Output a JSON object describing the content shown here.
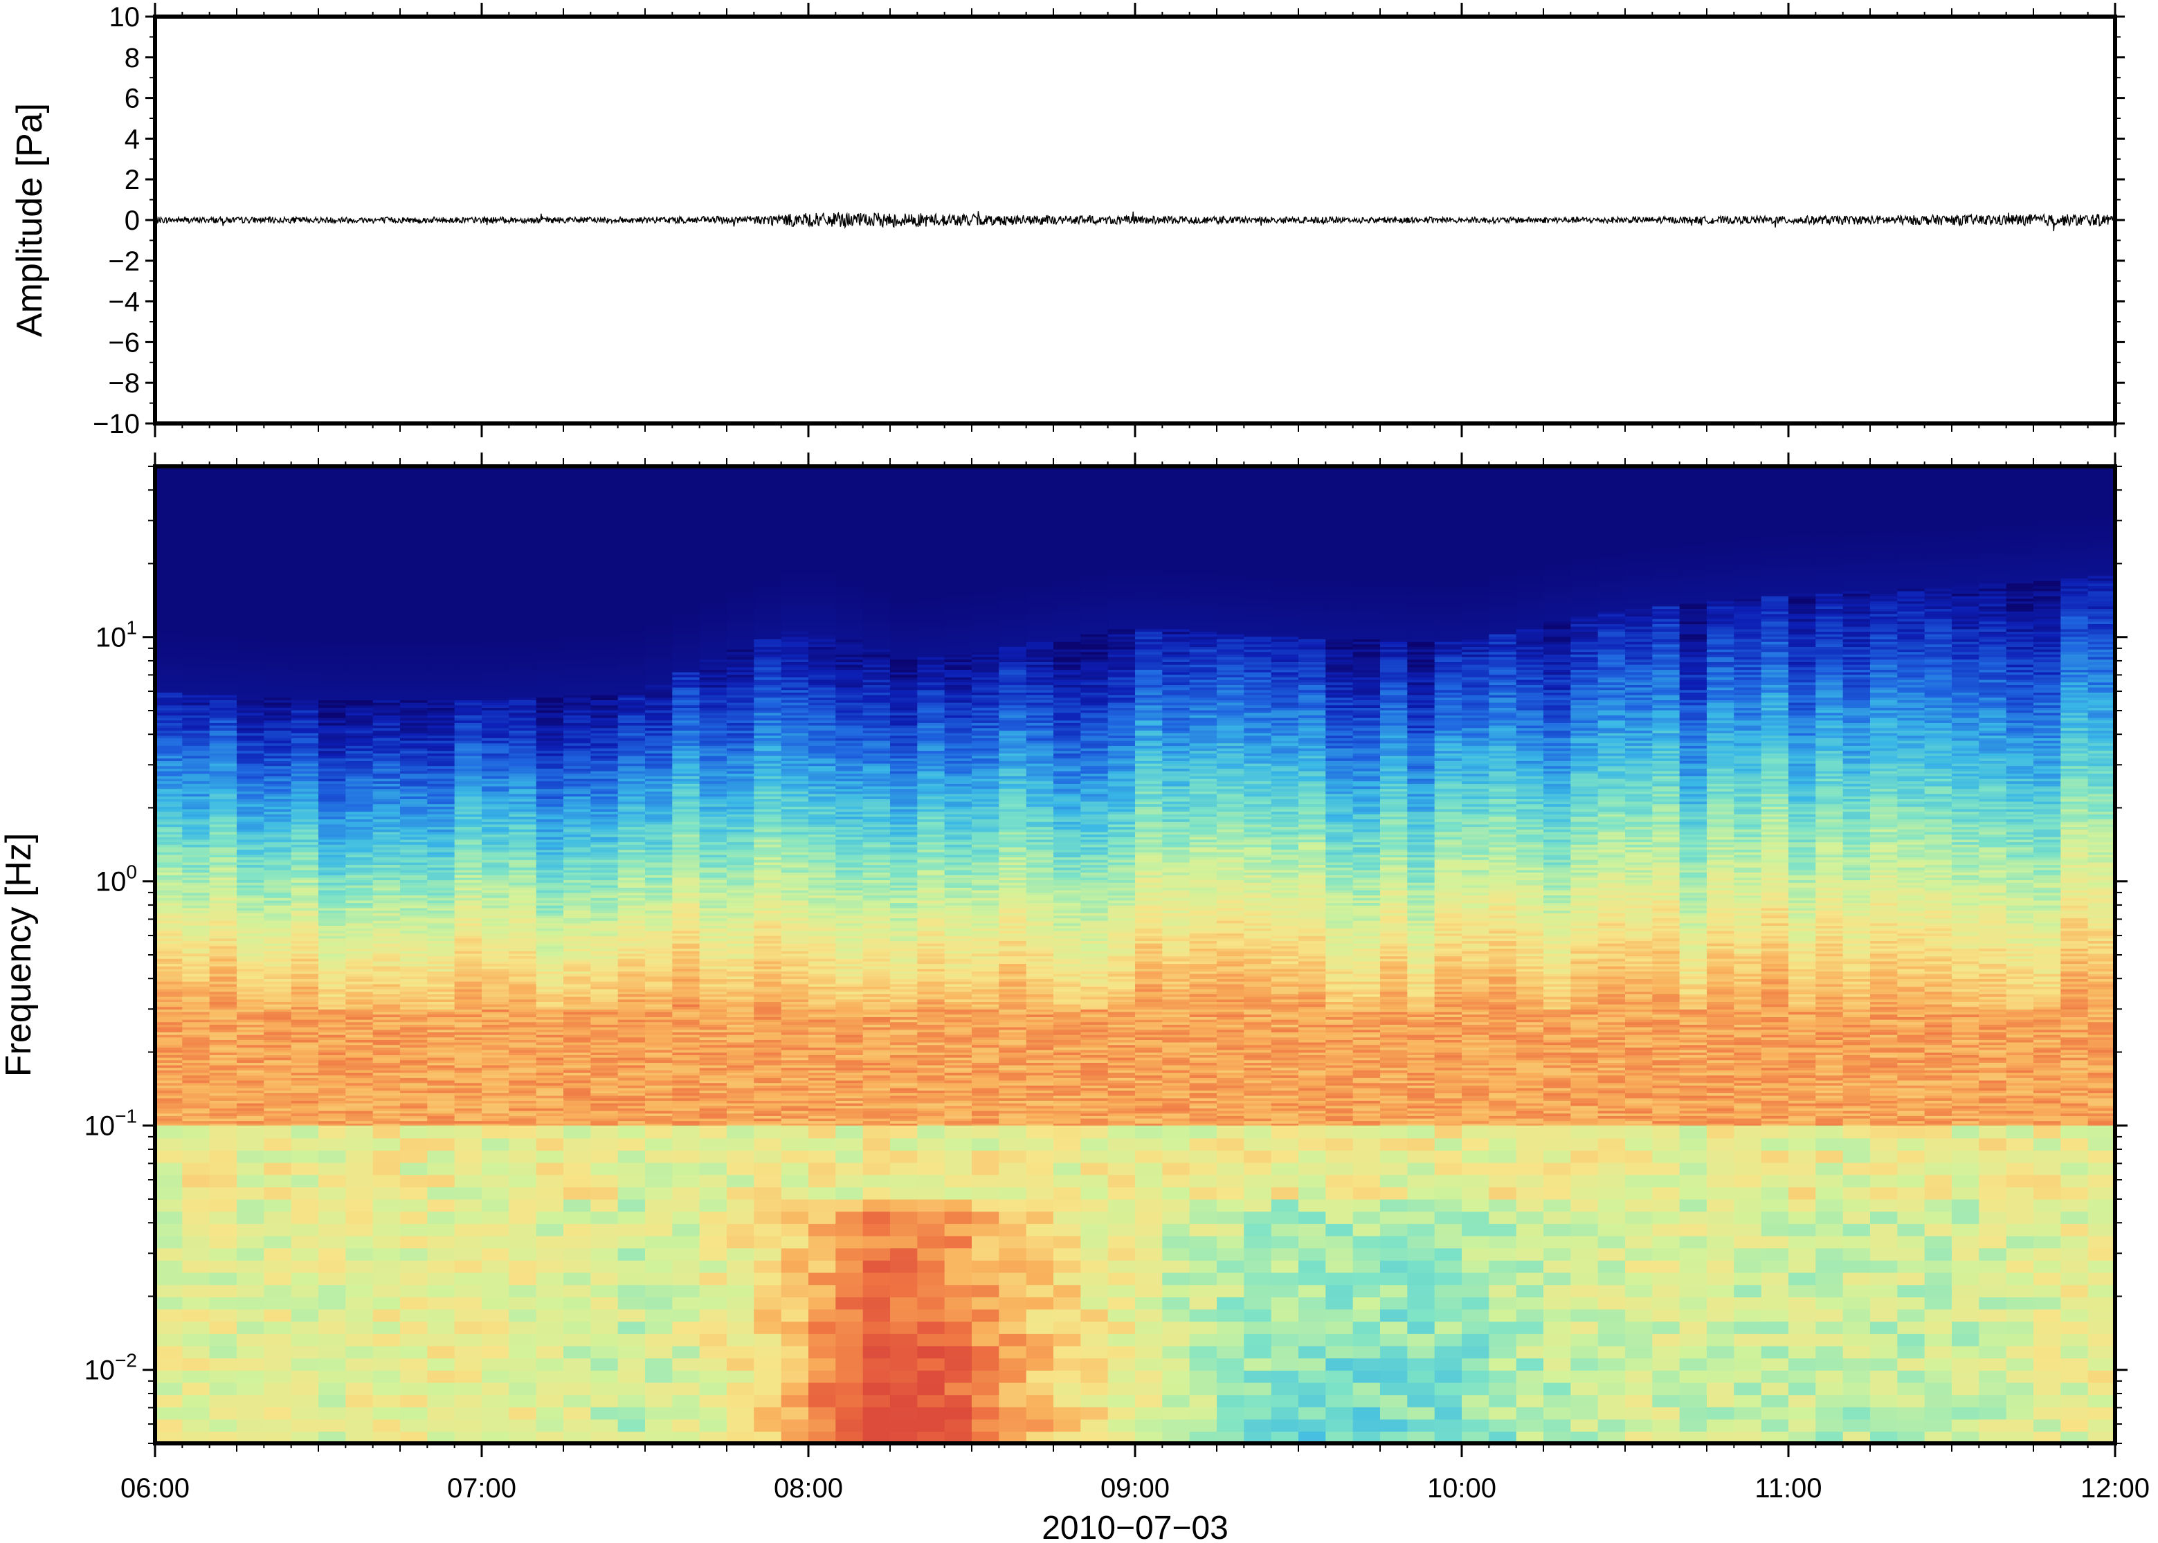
{
  "chart_data": [
    {
      "type": "line",
      "panel": "waveform",
      "ylabel": "Amplitude [Pa]",
      "ylim": [
        -10,
        10
      ],
      "yticks": [
        10,
        8,
        6,
        4,
        2,
        0,
        -2,
        -4,
        -6,
        -8,
        -10
      ],
      "ytick_labels": [
        "10",
        "8",
        "6",
        "4",
        "2",
        "0",
        "−2",
        "−4",
        "−6",
        "−8",
        "−10"
      ],
      "xlim": [
        "06:00",
        "12:00"
      ],
      "series_color": "#000000",
      "noise_envelope": {
        "hours": [
          6.0,
          6.5,
          7.0,
          7.5,
          7.8,
          8.0,
          8.3,
          8.6,
          9.0,
          9.5,
          10.0,
          10.5,
          11.0,
          11.5,
          12.0
        ],
        "amplitude_pa": [
          0.15,
          0.15,
          0.15,
          0.15,
          0.2,
          0.35,
          0.35,
          0.25,
          0.2,
          0.15,
          0.15,
          0.15,
          0.2,
          0.25,
          0.3
        ]
      }
    },
    {
      "type": "heatmap",
      "panel": "spectrogram",
      "ylabel": "Frequency [Hz]",
      "yscale": "log",
      "ylim": [
        0.005,
        50
      ],
      "yticks": [
        {
          "value": 10,
          "base": "10",
          "exp": "1"
        },
        {
          "value": 1,
          "base": "10",
          "exp": "0"
        },
        {
          "value": 0.1,
          "base": "10",
          "exp": "−1"
        },
        {
          "value": 0.01,
          "base": "10",
          "exp": "−2"
        }
      ],
      "xlabel": "2010−07−03",
      "xticks": [
        "06:00",
        "07:00",
        "08:00",
        "09:00",
        "10:00",
        "11:00",
        "12:00"
      ],
      "colormap": "jet",
      "colormap_stops": [
        "#0a0570",
        "#0d1fb5",
        "#1f66e0",
        "#3ab8e6",
        "#7ee3c6",
        "#d2f29a",
        "#f7e488",
        "#f9b15c",
        "#ee7342",
        "#dd4b3b"
      ],
      "columns": 72,
      "upper_edge_hz": {
        "hours": [
          6.0,
          6.5,
          7.0,
          7.5,
          7.8,
          8.0,
          8.3,
          8.6,
          9.0,
          9.5,
          10.0,
          10.5,
          11.0,
          11.5,
          12.0
        ],
        "values": [
          6,
          5.5,
          5.5,
          6,
          9,
          11,
          8,
          9,
          11,
          10,
          9.5,
          13,
          15,
          16,
          18
        ]
      },
      "low_freq_power": {
        "hours": [
          6.0,
          6.5,
          7.0,
          7.5,
          7.8,
          8.0,
          8.2,
          8.4,
          8.6,
          9.0,
          9.5,
          10.0,
          10.5,
          11.0,
          11.5,
          12.0
        ],
        "values": [
          0.6,
          0.6,
          0.62,
          0.55,
          0.65,
          0.78,
          0.95,
          0.92,
          0.78,
          0.6,
          0.45,
          0.48,
          0.58,
          0.55,
          0.55,
          0.62
        ]
      }
    }
  ]
}
